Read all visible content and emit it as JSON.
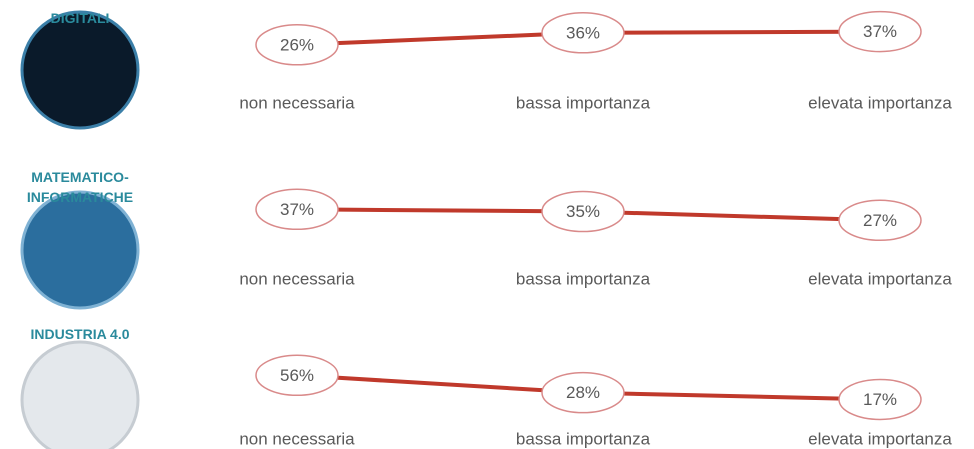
{
  "chart_data": [
    {
      "type": "line",
      "title": "DIGITALI",
      "categories": [
        "non necessaria",
        "bassa importanza",
        "elevata importanza"
      ],
      "values": [
        26,
        36,
        37
      ],
      "value_labels": [
        "26%",
        "36%",
        "37%"
      ],
      "color": "#c0392b",
      "ylim": [
        0,
        100
      ]
    },
    {
      "type": "line",
      "title": "MATEMATICO-\nINFORMATICHE",
      "categories": [
        "non necessaria",
        "bassa importanza",
        "elevata importanza"
      ],
      "values": [
        37,
        35,
        27
      ],
      "value_labels": [
        "37%",
        "35%",
        "27%"
      ],
      "color": "#c0392b",
      "ylim": [
        0,
        100
      ]
    },
    {
      "type": "line",
      "title": "INDUSTRIA 4.0",
      "categories": [
        "non necessaria",
        "bassa importanza",
        "elevata importanza"
      ],
      "values": [
        56,
        28,
        17
      ],
      "value_labels": [
        "56%",
        "28%",
        "17%"
      ],
      "color": "#c0392b",
      "ylim": [
        0,
        100
      ]
    }
  ]
}
